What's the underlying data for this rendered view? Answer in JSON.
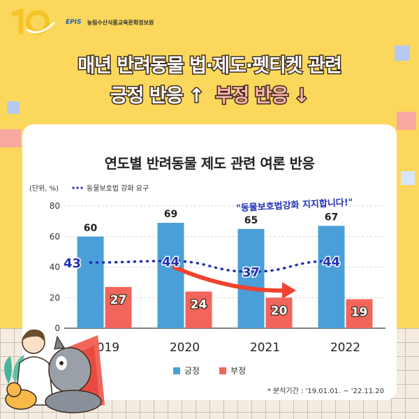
{
  "logo": {
    "brand": "EPIS",
    "org": "농림수산식품교육문화정보원"
  },
  "headline": {
    "line1": "매년 반려동물 법·제도·펫티켓 관련",
    "positive": "긍정 반응 ↑",
    "negative": "부정 반응 ↓"
  },
  "chart_data": {
    "type": "bar",
    "title": "연도별 반려동물 제도 관련 여론 반응",
    "unit_label": "(단위, %)",
    "categories": [
      "2019",
      "2020",
      "2021",
      "2022"
    ],
    "series": [
      {
        "name": "긍정",
        "values": [
          60,
          69,
          65,
          67
        ],
        "color": "#4a9fd8"
      },
      {
        "name": "부정",
        "values": [
          27,
          24,
          20,
          19
        ],
        "color": "#f2655a"
      }
    ],
    "line_series": {
      "name": "동물보호법 강화 요구",
      "values": [
        43,
        44,
        37,
        44
      ],
      "color": "#2030b8"
    },
    "annotation": "\"동물보호법강화 지지합니다!\"",
    "ylim": [
      0,
      80
    ],
    "yticks": [
      "0",
      "20",
      "40",
      "60",
      "80"
    ],
    "grid": true,
    "legend_position": "bottom"
  },
  "source_note": "* 분석기간 : '19.01.01. ~ '22.11.20"
}
